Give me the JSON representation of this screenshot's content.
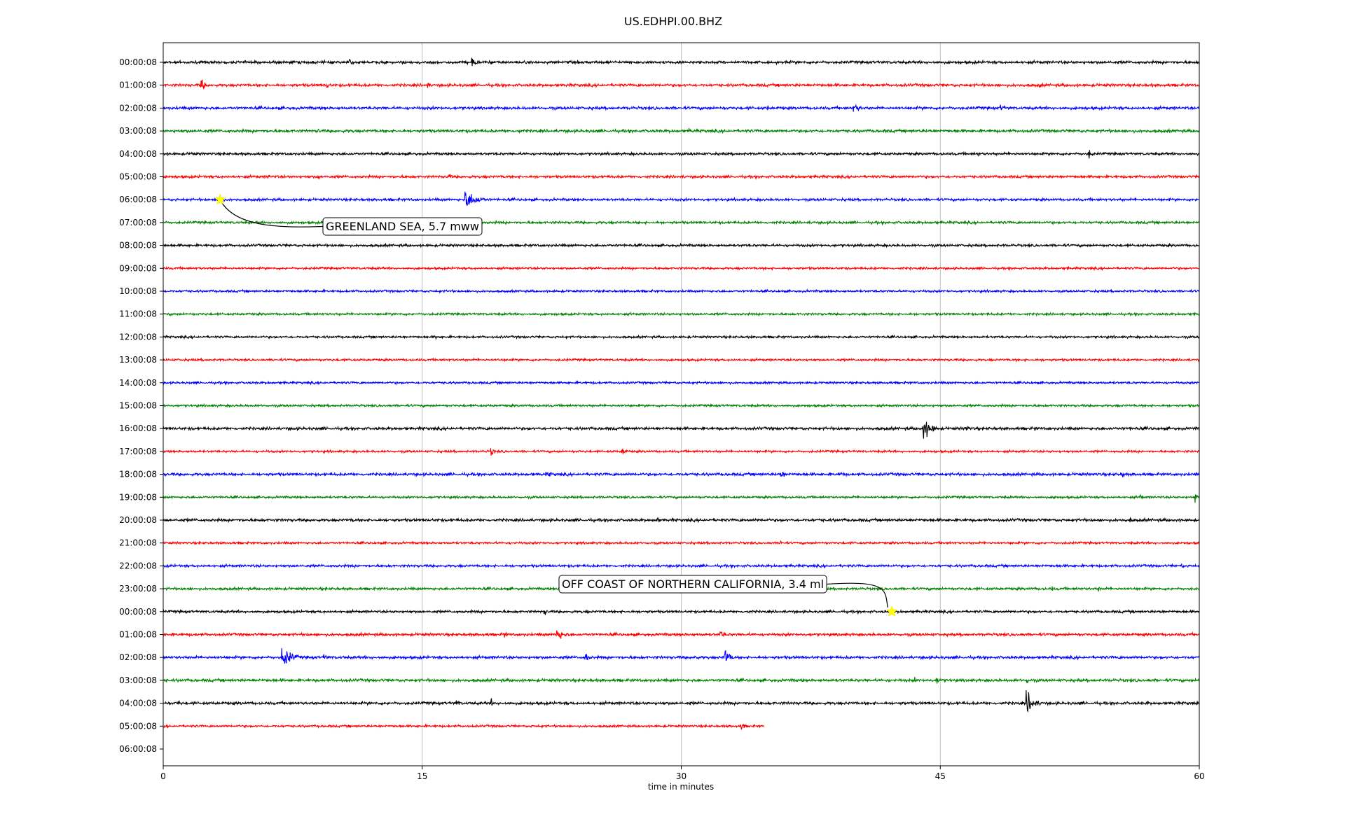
{
  "chart_data": {
    "type": "line",
    "title": "US.EDHPI.00.BHZ",
    "xlabel": "time in minutes",
    "ylabel": "",
    "xlim": [
      0,
      60
    ],
    "x_ticks": [
      "0",
      "15",
      "30",
      "45",
      "60"
    ],
    "x_tick_values": [
      0,
      15,
      30,
      45,
      60
    ],
    "grid": "vertical",
    "row_labels": [
      "00:00:08",
      "01:00:08",
      "02:00:08",
      "03:00:08",
      "04:00:08",
      "05:00:08",
      "06:00:08",
      "07:00:08",
      "08:00:08",
      "09:00:08",
      "10:00:08",
      "11:00:08",
      "12:00:08",
      "13:00:08",
      "14:00:08",
      "15:00:08",
      "16:00:08",
      "17:00:08",
      "18:00:08",
      "19:00:08",
      "20:00:08",
      "21:00:08",
      "22:00:08",
      "23:00:08",
      "00:00:08",
      "01:00:08",
      "02:00:08",
      "03:00:08",
      "04:00:08",
      "05:00:08",
      "06:00:08"
    ],
    "series_colors": [
      "#000000",
      "#ff0000",
      "#0000ff",
      "#008000"
    ],
    "trace_end_minutes": [
      60,
      60,
      60,
      60,
      60,
      60,
      60,
      60,
      60,
      60,
      60,
      60,
      60,
      60,
      60,
      60,
      60,
      60,
      60,
      60,
      60,
      60,
      60,
      60,
      60,
      60,
      60,
      60,
      60,
      34.8,
      0
    ],
    "noise_level": [
      0.1,
      0.1,
      0.1,
      0.1,
      0.09,
      0.09,
      0.09,
      0.09,
      0.09,
      0.08,
      0.08,
      0.08,
      0.08,
      0.08,
      0.08,
      0.08,
      0.1,
      0.08,
      0.1,
      0.08,
      0.1,
      0.08,
      0.09,
      0.09,
      0.09,
      0.1,
      0.1,
      0.1,
      0.1,
      0.08,
      0
    ],
    "bursts": [
      {
        "row": 0,
        "t": 10.8,
        "amp": 0.3,
        "dur": 0.6
      },
      {
        "row": 0,
        "t": 17.9,
        "amp": 0.45,
        "dur": 0.7
      },
      {
        "row": 1,
        "t": 2.2,
        "amp": 0.6,
        "dur": 0.6
      },
      {
        "row": 1,
        "t": 9.5,
        "amp": 0.4,
        "dur": 0.3
      },
      {
        "row": 1,
        "t": 15.3,
        "amp": 0.35,
        "dur": 0.4
      },
      {
        "row": 1,
        "t": 50.8,
        "amp": 0.25,
        "dur": 0.3
      },
      {
        "row": 2,
        "t": 35.0,
        "amp": 0.25,
        "dur": 0.4
      },
      {
        "row": 2,
        "t": 40.0,
        "amp": 0.35,
        "dur": 1.2
      },
      {
        "row": 2,
        "t": 48.5,
        "amp": 0.3,
        "dur": 0.8
      },
      {
        "row": 3,
        "t": 9.0,
        "amp": 0.2,
        "dur": 0.6
      },
      {
        "row": 3,
        "t": 20.6,
        "amp": 0.25,
        "dur": 0.4
      },
      {
        "row": 3,
        "t": 30.5,
        "amp": 0.2,
        "dur": 0.5
      },
      {
        "row": 4,
        "t": 1.7,
        "amp": 0.2,
        "dur": 0.3
      },
      {
        "row": 4,
        "t": 47.2,
        "amp": 0.25,
        "dur": 0.2
      },
      {
        "row": 4,
        "t": 53.6,
        "amp": 0.45,
        "dur": 0.5
      },
      {
        "row": 5,
        "t": 6.1,
        "amp": 0.25,
        "dur": 0.3
      },
      {
        "row": 5,
        "t": 9.0,
        "amp": 0.25,
        "dur": 0.3
      },
      {
        "row": 5,
        "t": 16.5,
        "amp": 0.3,
        "dur": 0.6
      },
      {
        "row": 6,
        "t": 17.5,
        "amp": 0.8,
        "dur": 1.8
      },
      {
        "row": 12,
        "t": 15.8,
        "amp": 0.25,
        "dur": 0.2
      },
      {
        "row": 16,
        "t": 44.0,
        "amp": 0.95,
        "dur": 1.2
      },
      {
        "row": 16,
        "t": 46.5,
        "amp": 0.3,
        "dur": 0.6
      },
      {
        "row": 16,
        "t": 50.5,
        "amp": 0.2,
        "dur": 0.3
      },
      {
        "row": 16,
        "t": 56.0,
        "amp": 0.15,
        "dur": 0.8
      },
      {
        "row": 17,
        "t": 19.0,
        "amp": 0.4,
        "dur": 0.5
      },
      {
        "row": 17,
        "t": 26.6,
        "amp": 0.45,
        "dur": 0.5
      },
      {
        "row": 18,
        "t": 22.3,
        "amp": 0.25,
        "dur": 1.0
      },
      {
        "row": 18,
        "t": 35.8,
        "amp": 0.5,
        "dur": 0.5
      },
      {
        "row": 18,
        "t": 39.3,
        "amp": 0.3,
        "dur": 0.4
      },
      {
        "row": 18,
        "t": 55.6,
        "amp": 0.3,
        "dur": 0.3
      },
      {
        "row": 19,
        "t": 51.6,
        "amp": 0.3,
        "dur": 0.2
      },
      {
        "row": 19,
        "t": 56.6,
        "amp": 0.35,
        "dur": 0.3
      },
      {
        "row": 19,
        "t": 59.8,
        "amp": 0.6,
        "dur": 0.2
      },
      {
        "row": 20,
        "t": 11.0,
        "amp": 0.2,
        "dur": 0.3
      },
      {
        "row": 20,
        "t": 28.6,
        "amp": 0.3,
        "dur": 0.4
      },
      {
        "row": 20,
        "t": 56.0,
        "amp": 0.25,
        "dur": 0.3
      },
      {
        "row": 21,
        "t": 35.8,
        "amp": 0.3,
        "dur": 0.3
      },
      {
        "row": 22,
        "t": 59.0,
        "amp": 0.2,
        "dur": 0.5
      },
      {
        "row": 23,
        "t": 51.5,
        "amp": 0.2,
        "dur": 0.3
      },
      {
        "row": 23,
        "t": 54.2,
        "amp": 0.2,
        "dur": 0.3
      },
      {
        "row": 24,
        "t": 22.1,
        "amp": 0.3,
        "dur": 0.4
      },
      {
        "row": 24,
        "t": 57.8,
        "amp": 0.2,
        "dur": 0.3
      },
      {
        "row": 25,
        "t": 19.7,
        "amp": 0.35,
        "dur": 0.6
      },
      {
        "row": 25,
        "t": 22.8,
        "amp": 0.55,
        "dur": 1.2
      },
      {
        "row": 25,
        "t": 32.3,
        "amp": 0.35,
        "dur": 0.6
      },
      {
        "row": 26,
        "t": 6.9,
        "amp": 0.85,
        "dur": 1.5
      },
      {
        "row": 26,
        "t": 9.3,
        "amp": 0.3,
        "dur": 0.8
      },
      {
        "row": 26,
        "t": 24.5,
        "amp": 0.6,
        "dur": 0.3
      },
      {
        "row": 26,
        "t": 30.8,
        "amp": 0.5,
        "dur": 0.3
      },
      {
        "row": 26,
        "t": 32.5,
        "amp": 0.8,
        "dur": 0.8
      },
      {
        "row": 27,
        "t": 43.5,
        "amp": 0.25,
        "dur": 0.4
      },
      {
        "row": 27,
        "t": 44.8,
        "amp": 0.3,
        "dur": 0.8
      },
      {
        "row": 27,
        "t": 50.0,
        "amp": 0.35,
        "dur": 0.5
      },
      {
        "row": 28,
        "t": 0.9,
        "amp": 0.3,
        "dur": 0.3
      },
      {
        "row": 28,
        "t": 17.0,
        "amp": 0.3,
        "dur": 0.6
      },
      {
        "row": 28,
        "t": 19.0,
        "amp": 0.35,
        "dur": 0.2
      },
      {
        "row": 28,
        "t": 50.0,
        "amp": 0.95,
        "dur": 1.2
      },
      {
        "row": 28,
        "t": 57.0,
        "amp": 0.2,
        "dur": 0.4
      },
      {
        "row": 29,
        "t": 33.5,
        "amp": 0.3,
        "dur": 0.6
      }
    ],
    "annotations": [
      {
        "label": "GREENLAND SEA, 5.7 mww",
        "row": 6,
        "minute": 3.3
      },
      {
        "label": "OFF COAST OF NORTHERN CALIFORNIA, 3.4 ml",
        "row": 24,
        "minute": 42.2
      }
    ]
  }
}
